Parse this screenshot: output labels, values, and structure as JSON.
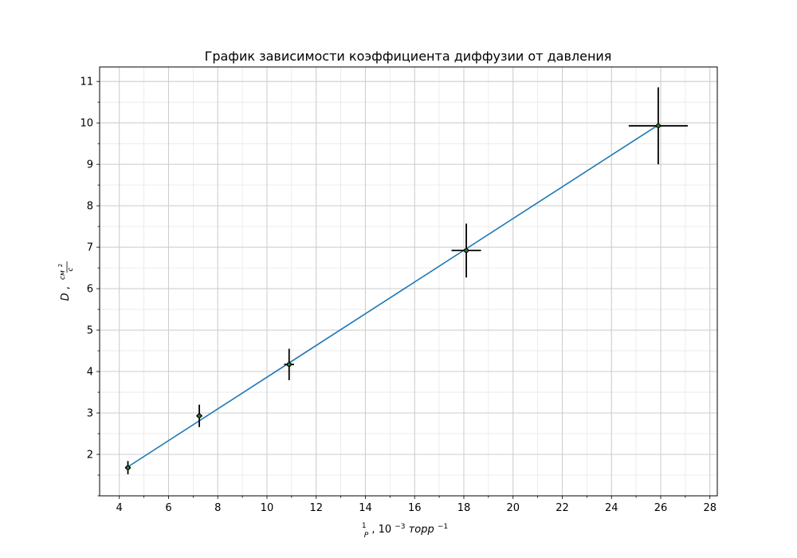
{
  "chart_data": {
    "type": "scatter",
    "title": "График зависимости коэффициента диффузии от давления",
    "xlabel": {
      "fraction_numerator": "1",
      "fraction_denominator": "P",
      "text": ", 10",
      "exponent": "−3",
      "unit": " торр",
      "unit_exponent": "−1"
    },
    "ylabel": {
      "symbol": "D",
      "separator": ", ",
      "unit_numerator": "см",
      "unit_numerator_exp": "2",
      "unit_denominator": "с"
    },
    "xlim": [
      3.2,
      28.3
    ],
    "ylim": [
      1.0,
      11.35
    ],
    "xticks": [
      4,
      6,
      8,
      10,
      12,
      14,
      16,
      18,
      20,
      22,
      24,
      26,
      28
    ],
    "yticks": [
      2,
      3,
      4,
      5,
      6,
      7,
      8,
      9,
      10,
      11
    ],
    "x_minor_step": 1,
    "y_minor_step": 0.5,
    "grid": true,
    "series": [
      {
        "kind": "errorbar",
        "color": "#000000",
        "marker_color": "#000000",
        "points": [
          {
            "x": 4.35,
            "y": 1.68,
            "xerr": 0.12,
            "yerr": 0.16
          },
          {
            "x": 7.25,
            "y": 2.93,
            "xerr": 0.12,
            "yerr": 0.27
          },
          {
            "x": 10.9,
            "y": 4.17,
            "xerr": 0.2,
            "yerr": 0.38
          },
          {
            "x": 18.1,
            "y": 6.92,
            "xerr": 0.6,
            "yerr": 0.65
          },
          {
            "x": 25.9,
            "y": 9.93,
            "xerr": 1.2,
            "yerr": 0.93
          }
        ]
      },
      {
        "kind": "line",
        "color": "#1f77b4",
        "x": [
          4.35,
          25.9
        ],
        "y": [
          1.7,
          9.95
        ]
      }
    ],
    "fit_marker_color": "#2e7d32"
  }
}
